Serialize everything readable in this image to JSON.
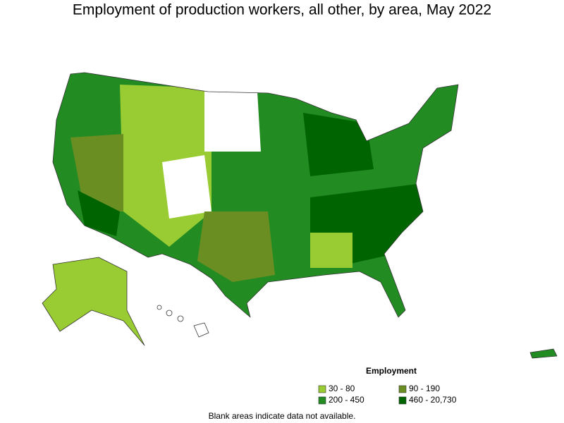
{
  "title": "Employment of production workers, all other, by area, May 2022",
  "legend": {
    "title": "Employment",
    "items": [
      {
        "label": "30 - 80",
        "color": "#99cc33"
      },
      {
        "label": "90 - 190",
        "color": "#6b8e23"
      },
      {
        "label": "200 - 450",
        "color": "#228b22"
      },
      {
        "label": "460 - 20,730",
        "color": "#006400"
      }
    ]
  },
  "note": "Blank areas indicate data not available."
}
